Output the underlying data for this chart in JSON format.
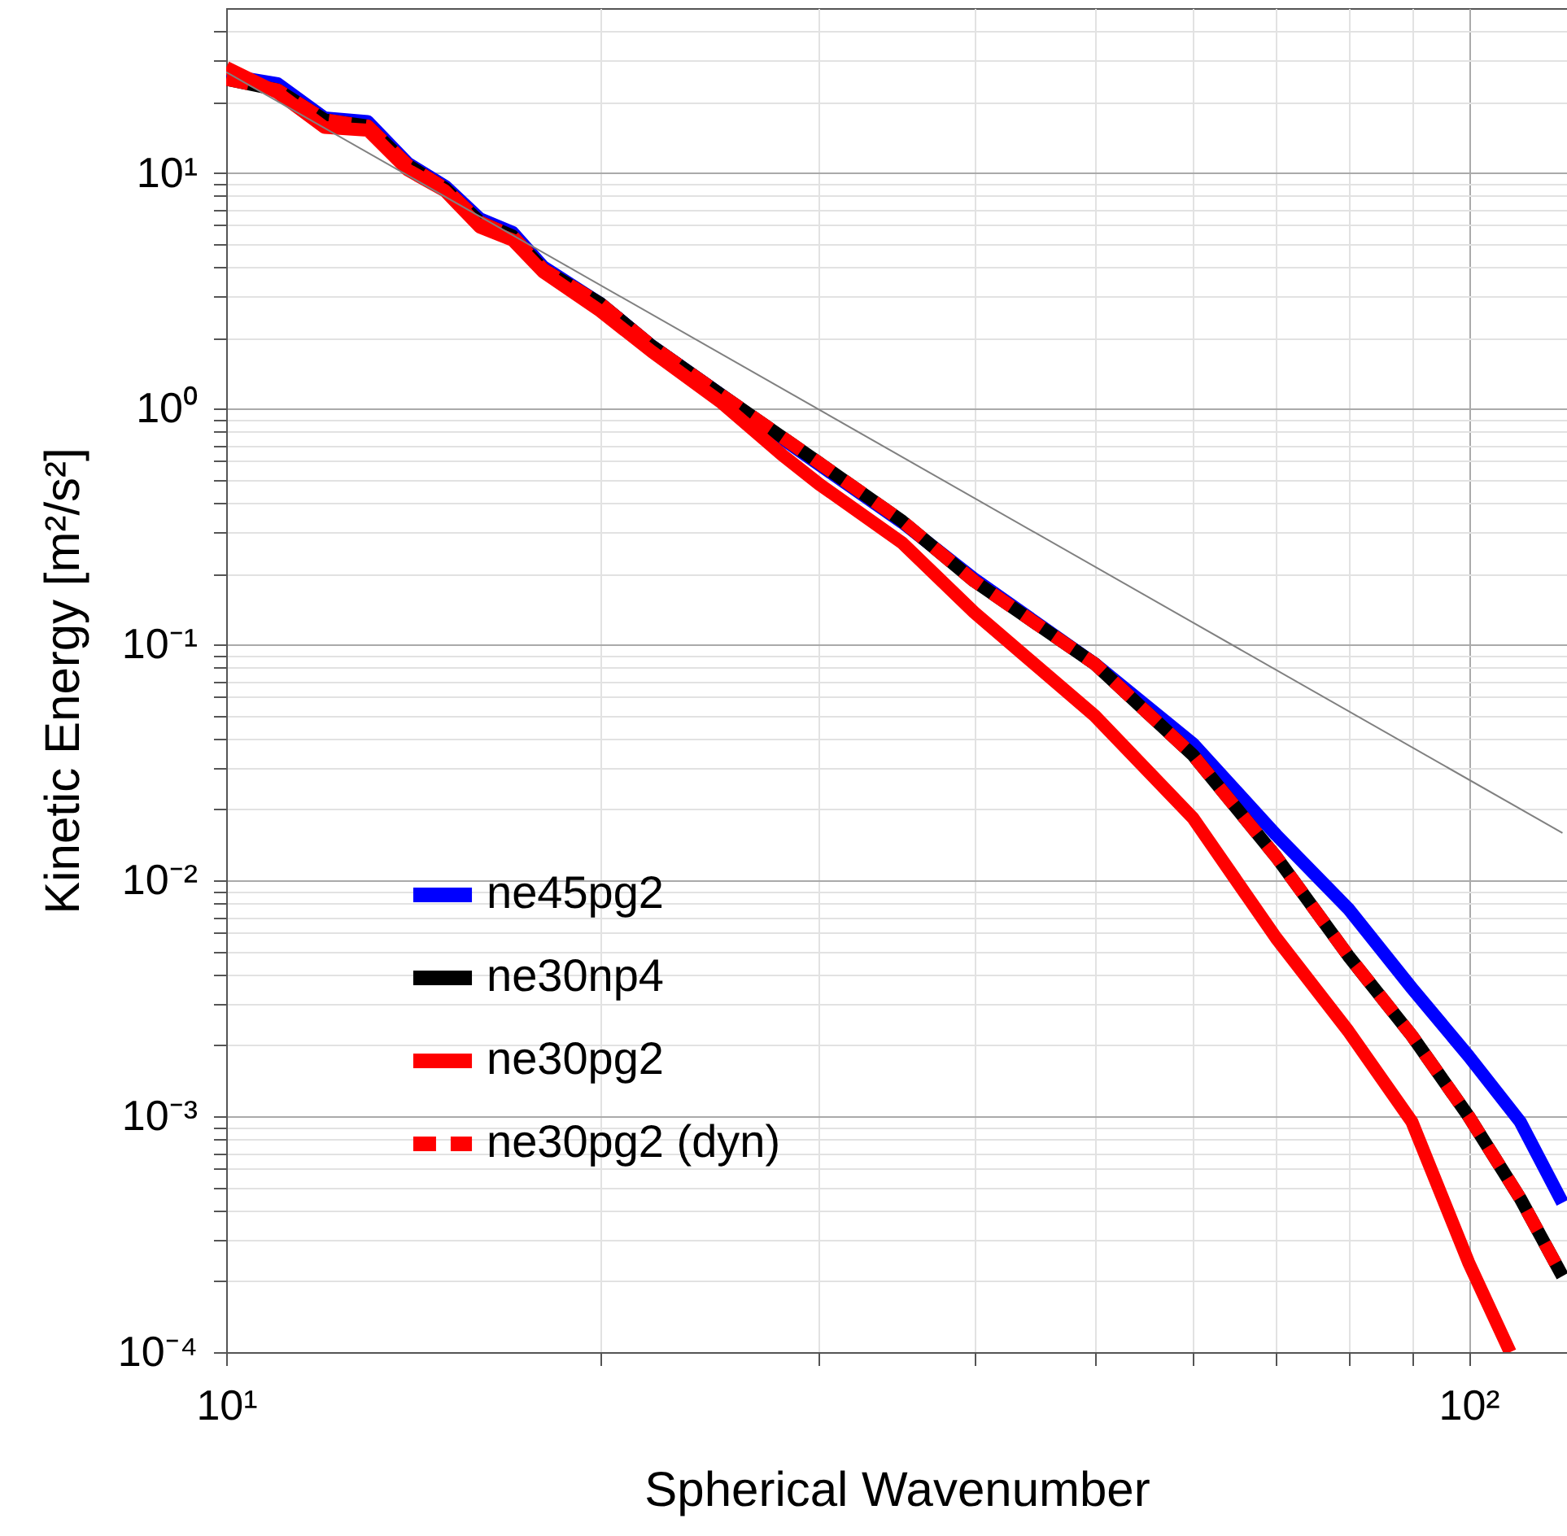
{
  "chart_data": {
    "type": "line",
    "xlabel": "Spherical Wavenumber",
    "ylabel": "Kinetic Energy [m²/s²]",
    "log": "xy",
    "grid": true,
    "legend": "bottom left",
    "xlim": [
      10,
      120
    ],
    "ylim": [
      0.0001,
      50
    ],
    "xticks": [
      {
        "value": 10,
        "label": "10¹"
      },
      {
        "value": 20,
        "label": null
      },
      {
        "value": 30,
        "label": null
      },
      {
        "value": 40,
        "label": null
      },
      {
        "value": 50,
        "label": null
      },
      {
        "value": 60,
        "label": null
      },
      {
        "value": 70,
        "label": null
      },
      {
        "value": 80,
        "label": null
      },
      {
        "value": 90,
        "label": null
      },
      {
        "value": 100,
        "label": "10²"
      }
    ],
    "yticks": [
      {
        "value": 0.0001,
        "label": "10⁻⁴"
      },
      {
        "value": 0.0002,
        "label": null
      },
      {
        "value": 0.0003,
        "label": null
      },
      {
        "value": 0.0004,
        "label": null
      },
      {
        "value": 0.0005,
        "label": null
      },
      {
        "value": 0.0006,
        "label": null
      },
      {
        "value": 0.0007,
        "label": null
      },
      {
        "value": 0.0008,
        "label": null
      },
      {
        "value": 0.0009,
        "label": null
      },
      {
        "value": 0.001,
        "label": "10⁻³"
      },
      {
        "value": 0.002,
        "label": null
      },
      {
        "value": 0.003,
        "label": null
      },
      {
        "value": 0.004,
        "label": null
      },
      {
        "value": 0.005,
        "label": null
      },
      {
        "value": 0.006,
        "label": null
      },
      {
        "value": 0.007,
        "label": null
      },
      {
        "value": 0.008,
        "label": null
      },
      {
        "value": 0.009,
        "label": null
      },
      {
        "value": 0.01,
        "label": "10⁻²"
      },
      {
        "value": 0.02,
        "label": null
      },
      {
        "value": 0.03,
        "label": null
      },
      {
        "value": 0.04,
        "label": null
      },
      {
        "value": 0.05,
        "label": null
      },
      {
        "value": 0.06,
        "label": null
      },
      {
        "value": 0.07,
        "label": null
      },
      {
        "value": 0.08,
        "label": null
      },
      {
        "value": 0.09,
        "label": null
      },
      {
        "value": 0.1,
        "label": "10⁻¹"
      },
      {
        "value": 0.2,
        "label": null
      },
      {
        "value": 0.3,
        "label": null
      },
      {
        "value": 0.4,
        "label": null
      },
      {
        "value": 0.5,
        "label": null
      },
      {
        "value": 0.6,
        "label": null
      },
      {
        "value": 0.7,
        "label": null
      },
      {
        "value": 0.8,
        "label": null
      },
      {
        "value": 0.9,
        "label": null
      },
      {
        "value": 1,
        "label": "10⁰"
      },
      {
        "value": 2,
        "label": null
      },
      {
        "value": 3,
        "label": null
      },
      {
        "value": 4,
        "label": null
      },
      {
        "value": 5,
        "label": null
      },
      {
        "value": 6,
        "label": null
      },
      {
        "value": 7,
        "label": null
      },
      {
        "value": 8,
        "label": null
      },
      {
        "value": 9,
        "label": null
      },
      {
        "value": 10,
        "label": "10¹"
      },
      {
        "value": 20,
        "label": null
      },
      {
        "value": 30,
        "label": null
      },
      {
        "value": 40,
        "label": null
      }
    ],
    "x": [
      10,
      11,
      12,
      13,
      14,
      15,
      16,
      17,
      18,
      20,
      22,
      25,
      28,
      30,
      35,
      40,
      50,
      60,
      70,
      80,
      90,
      100,
      110,
      119
    ],
    "series": [
      {
        "name": "ne45pg2",
        "color": "#0000ff",
        "values": [
          26,
          23.9,
          17.1,
          16.5,
          11,
          8.8,
          6.4,
          5.6,
          4.0,
          2.8,
          1.85,
          1.15,
          0.75,
          0.58,
          0.33,
          0.19,
          0.083,
          0.038,
          0.0156,
          0.0076,
          0.0035,
          0.0018,
          0.00095,
          0.00043
        ]
      },
      {
        "name": "ne30np4",
        "color": "#000000",
        "values": [
          25,
          22.5,
          16.8,
          15.8,
          10.8,
          8.6,
          6.2,
          5.4,
          3.9,
          2.8,
          1.85,
          1.15,
          0.76,
          0.59,
          0.334,
          0.186,
          0.083,
          0.034,
          0.0126,
          0.0048,
          0.0022,
          0.001,
          0.00045,
          0.00021
        ]
      },
      {
        "name": "ne30pg2",
        "color": "#ff0000",
        "x": [
          10,
          11,
          12,
          13,
          14,
          15,
          16,
          17,
          18,
          20,
          22,
          25,
          28,
          30,
          35,
          40,
          50,
          60,
          70,
          80,
          90,
          100,
          108
        ],
        "values": [
          28,
          21.9,
          15.6,
          15.2,
          10.3,
          8.4,
          5.9,
          5.2,
          3.8,
          2.6,
          1.75,
          1.07,
          0.64,
          0.48,
          0.27,
          0.137,
          0.05,
          0.0184,
          0.0057,
          0.0023,
          0.00095,
          0.00024,
          0.0001
        ]
      },
      {
        "name": "ne30pg2 (dyn)",
        "color": "#ff0000",
        "line_style": "dashed",
        "values": [
          25,
          22.5,
          16.8,
          15.8,
          10.8,
          8.6,
          6.2,
          5.4,
          3.9,
          2.8,
          1.85,
          1.15,
          0.76,
          0.59,
          0.334,
          0.186,
          0.083,
          0.034,
          0.0126,
          0.0048,
          0.0022,
          0.001,
          0.00045,
          0.00021
        ]
      },
      {
        "color": "#808080",
        "x": [
          10,
          119
        ],
        "values": [
          26.8,
          0.0159
        ]
      }
    ]
  }
}
